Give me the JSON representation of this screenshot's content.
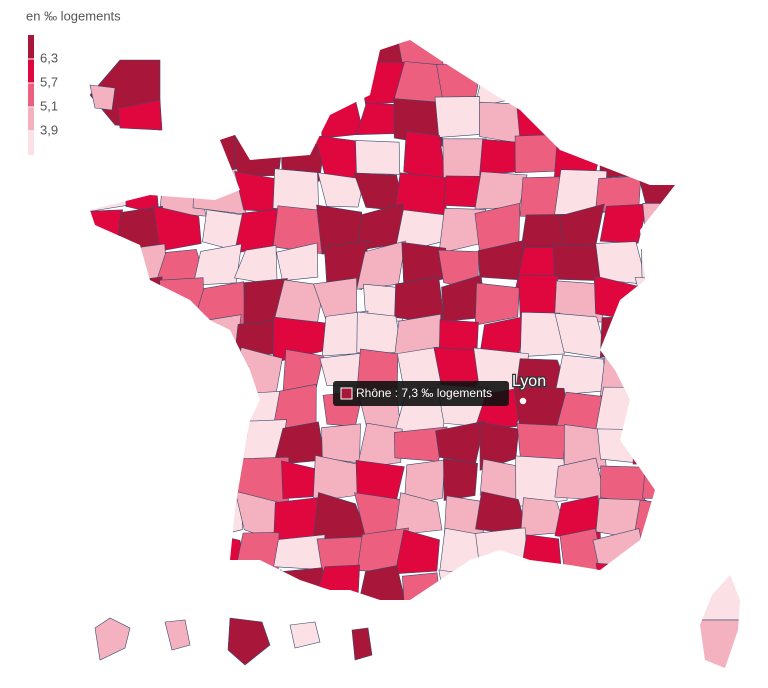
{
  "legend": {
    "title": "en ‰ logements",
    "ticks": [
      {
        "value": 6.3,
        "label": "6,3"
      },
      {
        "value": 5.7,
        "label": "5,7"
      },
      {
        "value": 5.1,
        "label": "5,1"
      },
      {
        "value": 3.9,
        "label": "3,9"
      }
    ],
    "colors": [
      "#a8173a",
      "#e0063e",
      "#ec5f7f",
      "#f4b2c0",
      "#fbe0e6"
    ]
  },
  "tooltip": {
    "text": "Rhône : 7,3 ‰ logements",
    "color": "#a8173a"
  },
  "city": {
    "label": "Lyon"
  }
}
